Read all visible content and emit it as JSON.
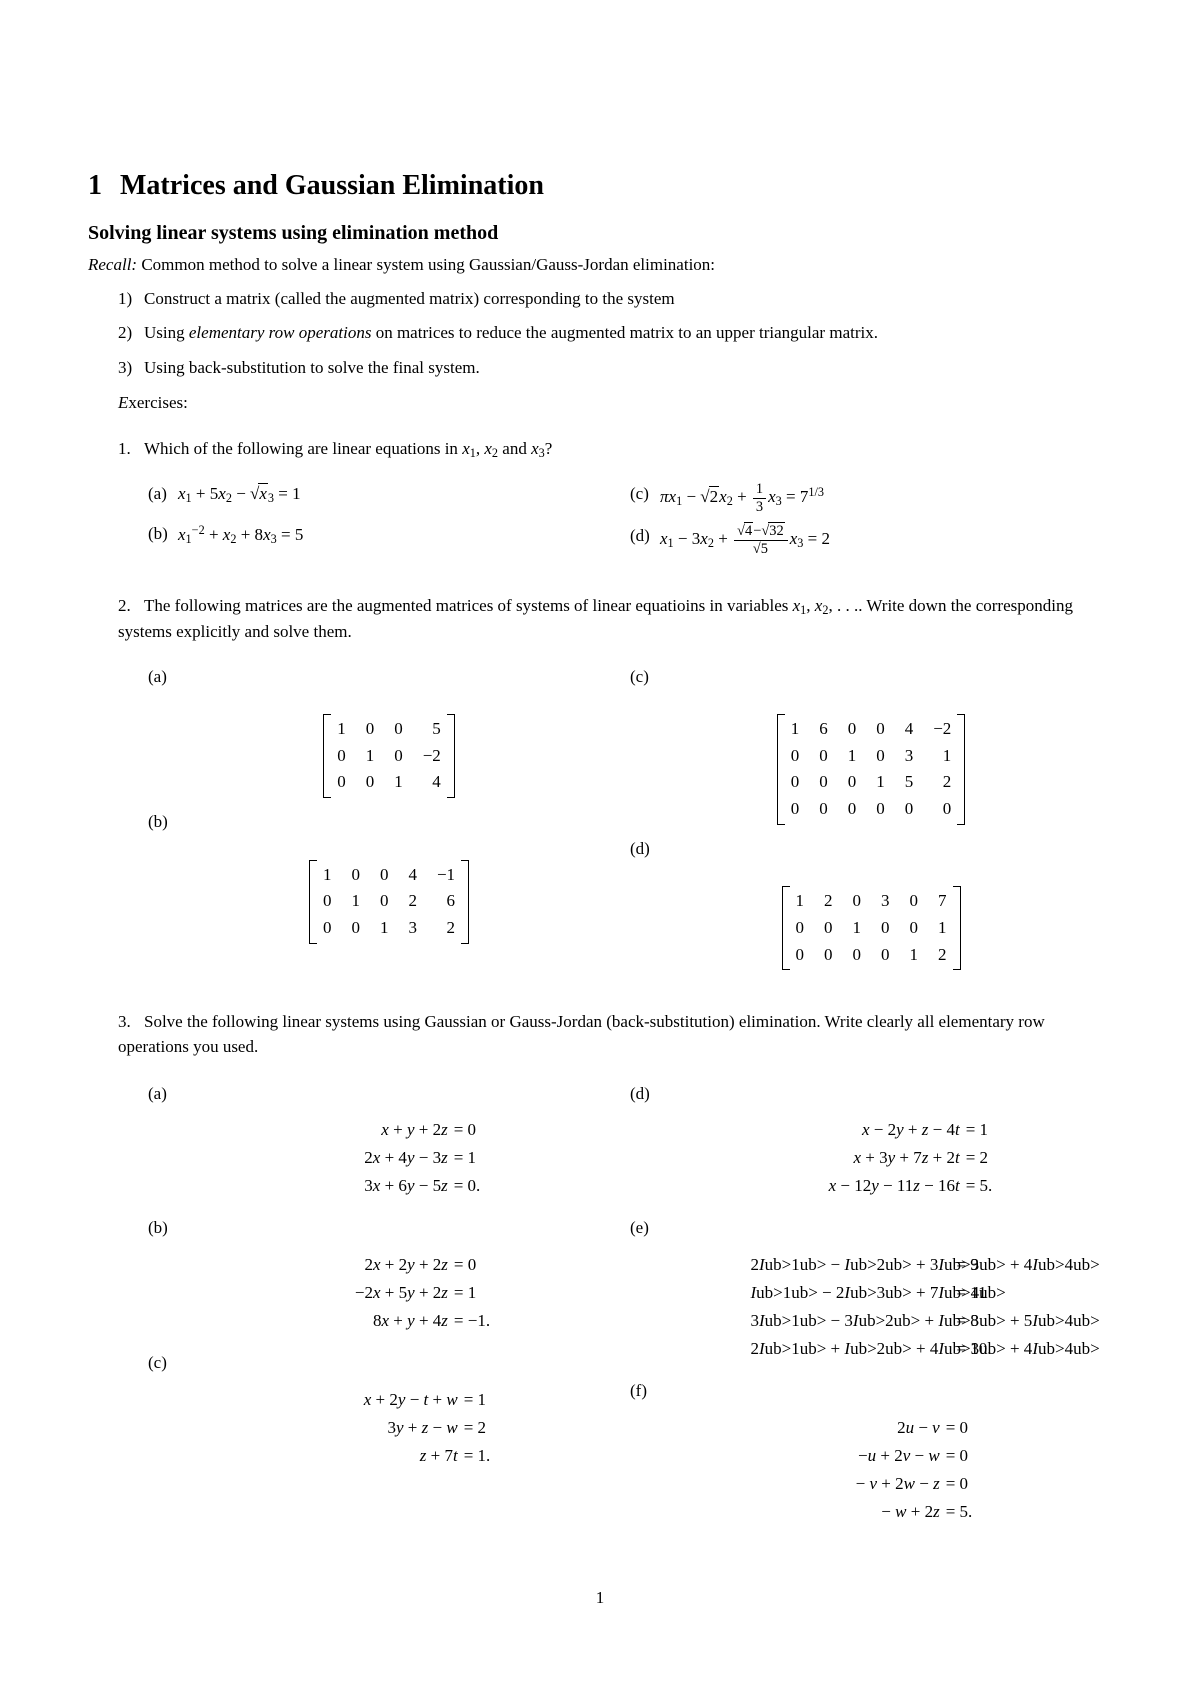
{
  "section_title": "Matrices and Gaussian Elimination",
  "section_number": "1",
  "subtitle": "Solving linear systems using elimination method",
  "recall_label": "Recall:",
  "recall_text": "Common method to solve a linear system using Gaussian/Gauss-Jordan elimination:",
  "steps": [
    "Construct a matrix (called the augmented matrix) corresponding to the system",
    "Using elementary row operations on matrices to reduce the augmented matrix to an upper triangular matrix.",
    "Using back-substitution to solve the final system."
  ],
  "step_prefix": [
    "1)",
    "2)",
    "3)"
  ],
  "exercises_label": "Exercises:",
  "q1": {
    "prompt": "Which of the following are linear equations in x₁, x₂ and x₃?",
    "parts": {
      "a": "x₁ + 5x₂ − √x₃ = 1",
      "b": "x₁⁻² + x₂ + 8x₃ = 5",
      "c": "πx₁ − √2 x₂ + ⅓ x₃ = 7¹ᐟ³",
      "d": "x₁ − 3x₂ + ((√4 − √32)/√5) x₃ = 2"
    }
  },
  "q2": {
    "prompt": "The following matrices are the augmented matrices of systems of linear equatioins in variables x₁, x₂, . . .. Write down the corresponding systems explicitly and solve them.",
    "matrices": {
      "a": [
        [
          "1",
          "0",
          "0",
          "5"
        ],
        [
          "0",
          "1",
          "0",
          "−2"
        ],
        [
          "0",
          "0",
          "1",
          "4"
        ]
      ],
      "b": [
        [
          "1",
          "0",
          "0",
          "4",
          "−1"
        ],
        [
          "0",
          "1",
          "0",
          "2",
          "6"
        ],
        [
          "0",
          "0",
          "1",
          "3",
          "2"
        ]
      ],
      "c": [
        [
          "1",
          "6",
          "0",
          "0",
          "4",
          "−2"
        ],
        [
          "0",
          "0",
          "1",
          "0",
          "3",
          "1"
        ],
        [
          "0",
          "0",
          "0",
          "1",
          "5",
          "2"
        ],
        [
          "0",
          "0",
          "0",
          "0",
          "0",
          "0"
        ]
      ],
      "d": [
        [
          "1",
          "2",
          "0",
          "3",
          "0",
          "7"
        ],
        [
          "0",
          "0",
          "1",
          "0",
          "0",
          "1"
        ],
        [
          "0",
          "0",
          "0",
          "0",
          "1",
          "2"
        ]
      ]
    }
  },
  "q3": {
    "prompt": "Solve the following linear systems using Gaussian or Gauss-Jordan (back-substitution) elimination. Write clearly all elementary row operations you used.",
    "systems": {
      "a": [
        {
          "lhs": "x + y + 2z",
          "rhs": "= 0"
        },
        {
          "lhs": "2x + 4y − 3z",
          "rhs": "= 1"
        },
        {
          "lhs": "3x + 6y − 5z",
          "rhs": "= 0."
        }
      ],
      "b": [
        {
          "lhs": "2x + 2y + 2z",
          "rhs": "= 0"
        },
        {
          "lhs": "−2x + 5y + 2z",
          "rhs": "= 1"
        },
        {
          "lhs": "8x + y + 4z",
          "rhs": "= −1."
        }
      ],
      "c": [
        {
          "lhs": "x + 2y − t + w",
          "rhs": "= 1"
        },
        {
          "lhs": "3y + z − w",
          "rhs": "= 2"
        },
        {
          "lhs": "z + 7t",
          "rhs": "= 1."
        }
      ],
      "d": [
        {
          "lhs": "x − 2y + z − 4t",
          "rhs": "= 1"
        },
        {
          "lhs": "x + 3y + 7z + 2t",
          "rhs": "= 2"
        },
        {
          "lhs": "x − 12y − 11z − 16t",
          "rhs": "= 5."
        }
      ],
      "e": [
        {
          "lhs": "2I₁ − I₂  + 3I₃ + 4I₄",
          "rhs": "= 9"
        },
        {
          "lhs": "I₁ −        2I₃ + 7I₄",
          "rhs": "= 11"
        },
        {
          "lhs": "3I₁ − 3I₂  + I₃ + 5I₄",
          "rhs": "= 8"
        },
        {
          "lhs": "2I₁ + I₂  + 4I₃ + 4I₄",
          "rhs": "= 10."
        }
      ],
      "f": [
        {
          "lhs": "2u − v               ",
          "rhs": "= 0"
        },
        {
          "lhs": "−u + 2v  − w      ",
          "rhs": "= 0"
        },
        {
          "lhs": "− v  + 2w − z ",
          "rhs": "= 0"
        },
        {
          "lhs": "− w + 2z",
          "rhs": "= 5."
        }
      ]
    }
  },
  "page_number": "1"
}
